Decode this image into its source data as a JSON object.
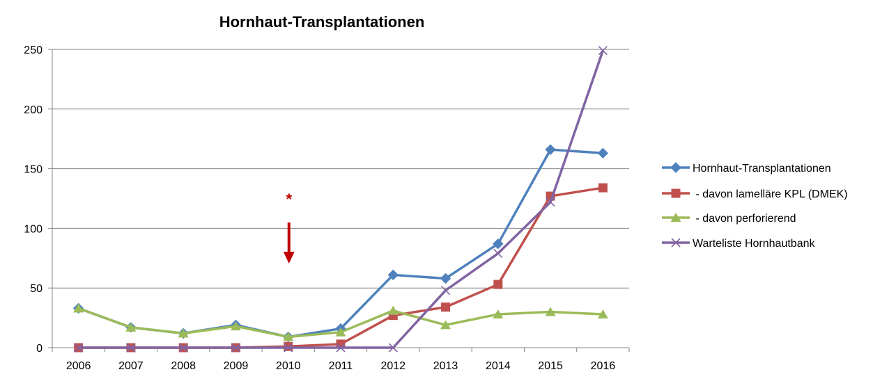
{
  "chart_data": {
    "type": "line",
    "title": "Hornhaut-Transplantationen",
    "xlabel": "",
    "ylabel": "",
    "categories": [
      "2006",
      "2007",
      "2008",
      "2009",
      "2010",
      "2011",
      "2012",
      "2013",
      "2014",
      "2015",
      "2016"
    ],
    "ylim": [
      0,
      250
    ],
    "yticks": [
      0,
      50,
      100,
      150,
      200,
      250
    ],
    "grid": true,
    "legend_position": "right",
    "series": [
      {
        "name": "Hornhaut-Transplantationen",
        "color": "#4F81BD",
        "marker": "diamond",
        "values": [
          33,
          17,
          12,
          19,
          9,
          16,
          61,
          58,
          87,
          166,
          163
        ]
      },
      {
        "name": " - davon lamelläre KPL (DMEK)",
        "color": "#C0504D",
        "marker": "square",
        "values": [
          0,
          0,
          0,
          0,
          1,
          3,
          27,
          34,
          53,
          127,
          134
        ]
      },
      {
        "name": " - davon perforierend",
        "color": "#9BBB59",
        "marker": "triangle",
        "values": [
          33,
          17,
          12,
          18,
          9,
          13,
          31,
          19,
          28,
          30,
          28
        ]
      },
      {
        "name": "Warteliste Hornhautbank",
        "color": "#8064A2",
        "marker": "x",
        "values": [
          0,
          0,
          0,
          0,
          0,
          0,
          0,
          48,
          79,
          122,
          249
        ]
      }
    ],
    "annotation": {
      "text": "*",
      "category": "2010",
      "color": "#C00000",
      "arrow": "down"
    }
  }
}
